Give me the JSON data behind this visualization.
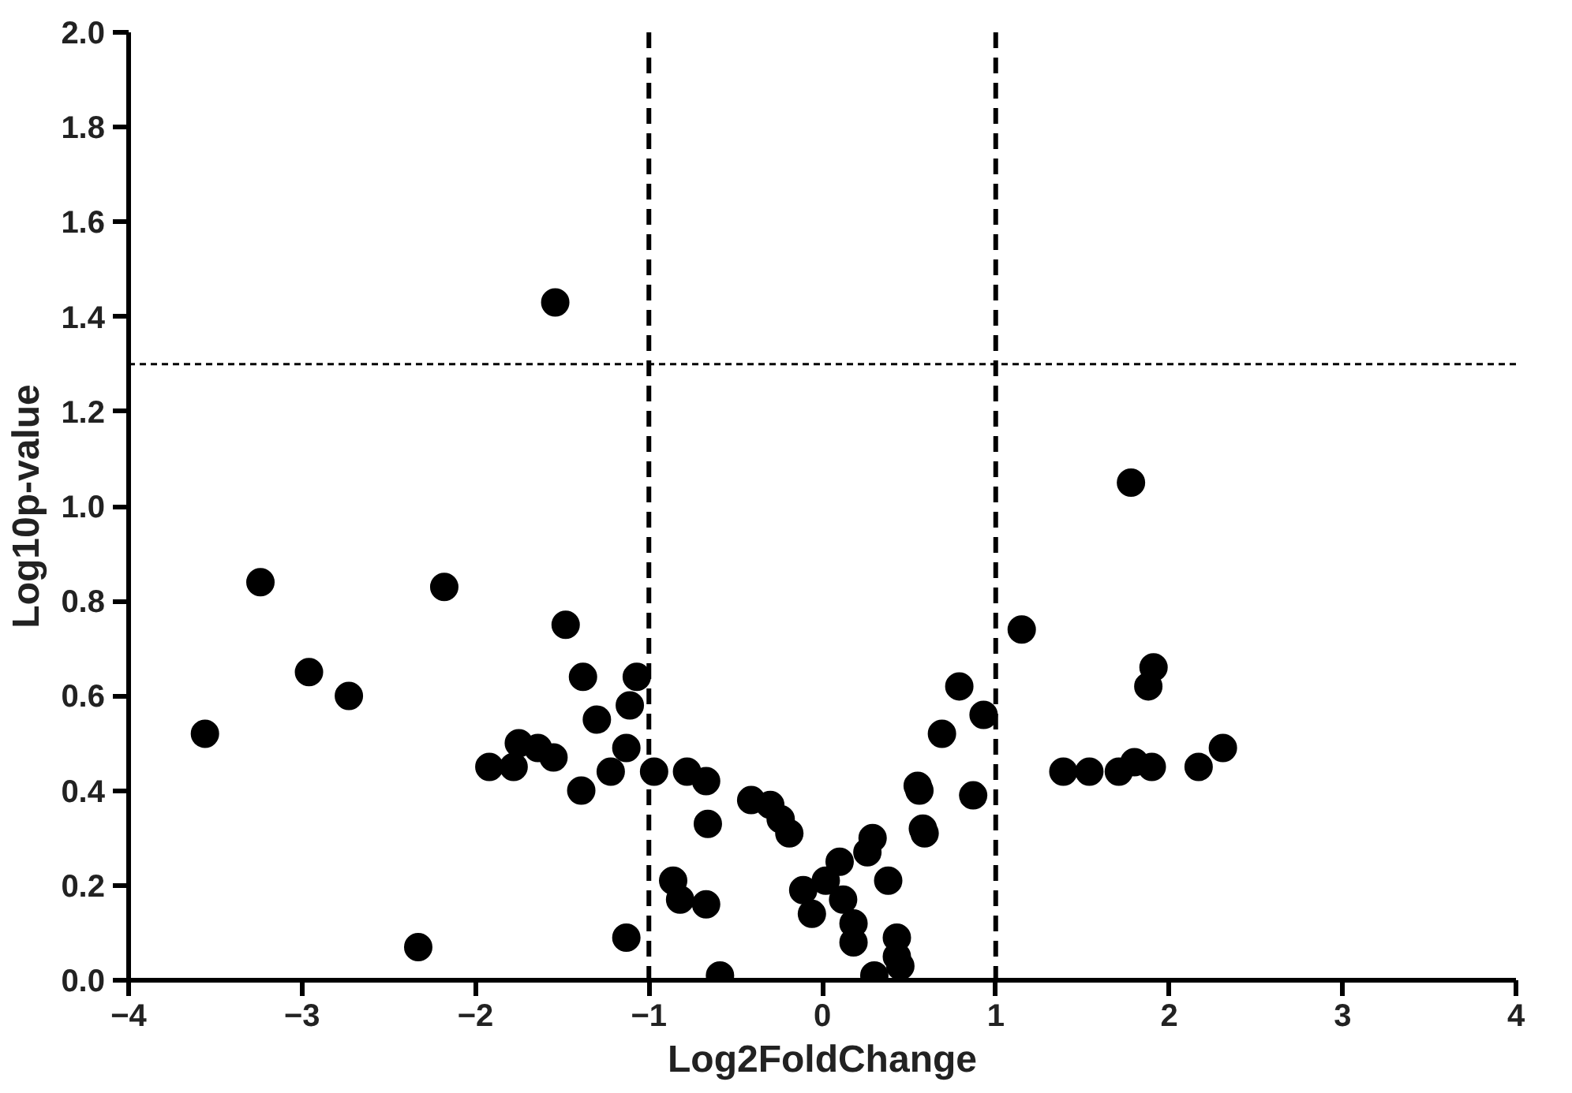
{
  "chart_data": {
    "type": "scatter",
    "xlabel": "Log2FoldChange",
    "ylabel": "Log10p-value",
    "xlim": [
      -4,
      4
    ],
    "xticks": [
      -4,
      -3,
      -2,
      -1,
      0,
      1,
      2,
      3,
      4
    ],
    "ylim": [
      0,
      2
    ],
    "yticks": [
      {
        "value": 0,
        "label": "0.0"
      },
      {
        "value": 0.2,
        "label": "0.2"
      },
      {
        "value": 0.4,
        "label": "0.4"
      },
      {
        "value": 0.6,
        "label": "0.6"
      },
      {
        "value": 0.8,
        "label": "0.8"
      },
      {
        "value": 1.0,
        "label": "1.0"
      },
      {
        "value": 1.2,
        "label": "1.2"
      },
      {
        "value": 1.4,
        "label": "1.4"
      },
      {
        "value": 1.6,
        "label": "1.6"
      },
      {
        "value": 1.8,
        "label": "1.8"
      },
      {
        "value": 2.0,
        "label": "2.0"
      }
    ],
    "grid": false,
    "marker": "circle",
    "ref_lines": [
      {
        "axis": "x",
        "value": -1,
        "line_style": "dashed"
      },
      {
        "axis": "x",
        "value": 1,
        "line_style": "dashed"
      },
      {
        "axis": "y",
        "value": 1.3,
        "line_style": "dotted"
      }
    ],
    "series": [
      {
        "color": "#000000",
        "x": [
          -3.56,
          -3.24,
          -2.96,
          -2.73,
          -2.33,
          -2.18,
          -1.92,
          -1.78,
          -1.75,
          -1.64,
          -1.55,
          -1.54,
          -1.48,
          -1.39,
          -1.38,
          -1.3,
          -1.22,
          -1.13,
          -1.13,
          -1.11,
          -1.07,
          -0.97,
          -0.78,
          -0.67,
          -0.66,
          -0.86,
          -0.82,
          -0.67,
          -0.59,
          -0.41,
          -0.3,
          -0.24,
          -0.19,
          -0.11,
          -0.06,
          0.02,
          0.1,
          0.12,
          0.18,
          0.18,
          0.26,
          0.29,
          0.38,
          0.3,
          0.43,
          0.43,
          0.45,
          0.55,
          0.56,
          0.58,
          0.59,
          0.69,
          0.79,
          0.87,
          0.93,
          1.15,
          1.78,
          1.91,
          1.88,
          1.39,
          1.54,
          1.71,
          1.8,
          1.9,
          2.17,
          2.31
        ],
        "values": [
          0.52,
          0.84,
          0.65,
          0.6,
          0.07,
          0.83,
          0.45,
          0.45,
          0.5,
          0.49,
          0.47,
          1.43,
          0.75,
          0.4,
          0.64,
          0.55,
          0.44,
          0.09,
          0.49,
          0.58,
          0.64,
          0.44,
          0.44,
          0.42,
          0.33,
          0.21,
          0.17,
          0.16,
          0.01,
          0.38,
          0.37,
          0.34,
          0.31,
          0.19,
          0.14,
          0.21,
          0.25,
          0.17,
          0.12,
          0.08,
          0.27,
          0.3,
          0.21,
          0.01,
          0.09,
          0.05,
          0.03,
          0.41,
          0.4,
          0.32,
          0.31,
          0.52,
          0.62,
          0.39,
          0.56,
          0.74,
          1.05,
          0.66,
          0.62,
          0.44,
          0.44,
          0.44,
          0.46,
          0.45,
          0.45,
          0.49
        ]
      }
    ]
  }
}
